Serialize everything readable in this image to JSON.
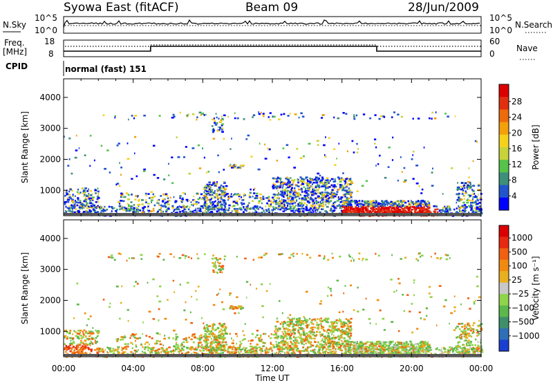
{
  "header": {
    "station": "Syowa East (fitACF)",
    "beam": "Beam 09",
    "date": "28/Jun/2009"
  },
  "strip": {
    "nsky_label": "N.Sky",
    "nsky_ticks": [
      "10^5",
      "10^0"
    ],
    "nsearch_label": "N.Search",
    "nsearch_ticks": [
      "10^5",
      "10^0"
    ],
    "freq_label_1": "Freq.",
    "freq_label_2": "[MHz]",
    "freq_ticks": [
      "18",
      "8"
    ],
    "nave_label": "Nave",
    "nave_ticks": [
      "60",
      "0"
    ],
    "cpid_label": "CPID",
    "cpid_value": "normal (fast) 151"
  },
  "chart_data": [
    {
      "type": "heatmap",
      "panel": "power",
      "ylabel": "Slant Range [km]",
      "yticks": [
        1000,
        2000,
        3000,
        4000
      ],
      "ylim": [
        180,
        4600
      ],
      "xlim": [
        0,
        24
      ],
      "colorbar": {
        "label": "Power [dB]",
        "ticks": [
          "4",
          "8",
          "12",
          "16",
          "20",
          "24",
          "28"
        ],
        "colors": [
          "#0000ff",
          "#2255cc",
          "#3d8f7a",
          "#55c24a",
          "#c8d23a",
          "#f4d21c",
          "#f4a00c",
          "#ec6b0c",
          "#e03010",
          "#dd0000"
        ]
      }
    },
    {
      "type": "heatmap",
      "panel": "velocity",
      "ylabel": "Slant Range [km]",
      "yticks": [
        1000,
        2000,
        3000,
        4000
      ],
      "ylim": [
        180,
        4600
      ],
      "xlim": [
        0,
        24
      ],
      "xlabel": "Time UT",
      "xticks": [
        "00:00",
        "04:00",
        "08:00",
        "12:00",
        "16:00",
        "20:00",
        "00:00"
      ],
      "colorbar": {
        "label": "Velocity [m s⁻¹]",
        "ticks": [
          "1000",
          "500",
          "100",
          "25",
          "−25",
          "−100",
          "−500",
          "−1000"
        ],
        "colors": [
          "#1a3fd0",
          "#2f6fb8",
          "#3f8f6a",
          "#5cb84a",
          "#8fd44a",
          "#c8c8c8",
          "#e8b020",
          "#f08a10",
          "#f06010",
          "#e82a10",
          "#dd0000"
        ]
      }
    }
  ]
}
